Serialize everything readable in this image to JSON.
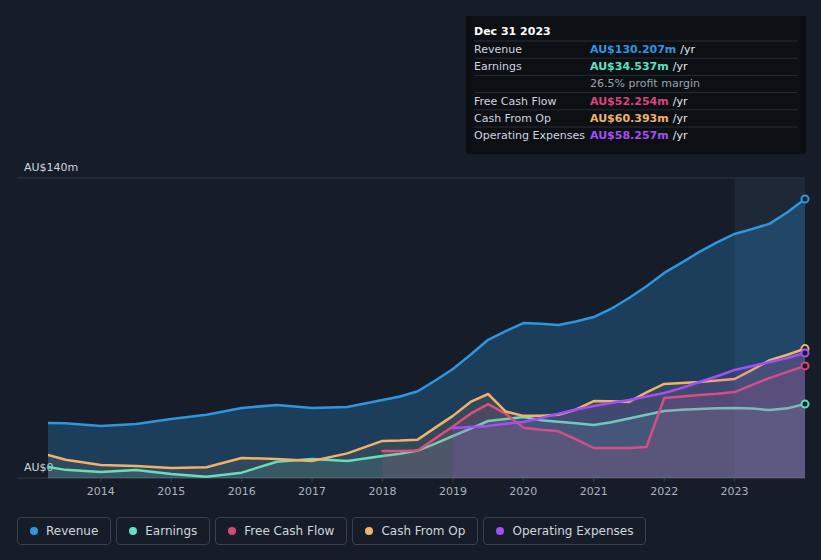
{
  "chart_data": {
    "type": "line",
    "x": [
      2013.25,
      2013.5,
      2014.0,
      2014.5,
      2015.0,
      2015.5,
      2016.0,
      2016.5,
      2017.0,
      2017.5,
      2018.0,
      2018.25,
      2018.5,
      2018.75,
      2019.0,
      2019.25,
      2019.5,
      2019.75,
      2020.0,
      2020.25,
      2020.5,
      2020.75,
      2021.0,
      2021.25,
      2021.5,
      2021.75,
      2022.0,
      2022.25,
      2022.5,
      2022.75,
      2023.0,
      2023.25,
      2023.5,
      2023.75,
      2024.0
    ],
    "series": [
      {
        "name": "Revenue",
        "color": "#2d96e0",
        "values": [
          25.7,
          25.5,
          24.3,
          25.2,
          27.5,
          29.5,
          32.7,
          34.1,
          32.7,
          33.1,
          36.4,
          38.0,
          40.5,
          45.5,
          50.9,
          57.5,
          64.5,
          68.5,
          72.3,
          72.0,
          71.4,
          73.0,
          75.1,
          79.0,
          84.0,
          89.5,
          95.7,
          100.5,
          105.5,
          110.0,
          113.9,
          116.2,
          118.7,
          124.0,
          130.2
        ]
      },
      {
        "name": "Earnings",
        "color": "#5fe0c2",
        "values": [
          5.1,
          3.8,
          2.8,
          3.7,
          1.9,
          0.6,
          2.5,
          7.6,
          8.9,
          7.9,
          10.3,
          11.3,
          12.8,
          16.0,
          19.6,
          23.0,
          26.6,
          27.5,
          28.5,
          27.0,
          26.2,
          25.5,
          24.7,
          26.0,
          27.8,
          29.5,
          31.3,
          31.8,
          32.2,
          32.5,
          32.7,
          32.4,
          31.7,
          32.5,
          34.5
        ]
      },
      {
        "name": "Free Cash Flow",
        "color": "#d9467c",
        "values": [
          null,
          null,
          null,
          null,
          null,
          null,
          null,
          null,
          null,
          null,
          12.6,
          12.6,
          12.8,
          18.5,
          24.0,
          30.0,
          34.5,
          30.0,
          23.5,
          22.5,
          21.8,
          18.0,
          14.0,
          14.0,
          14.0,
          14.5,
          37.3,
          38.0,
          38.7,
          39.3,
          40.1,
          43.5,
          46.7,
          49.5,
          52.3
        ]
      },
      {
        "name": "Cash From Op",
        "color": "#f0b26b",
        "values": [
          10.7,
          8.5,
          6.1,
          5.6,
          4.7,
          5.0,
          9.3,
          8.9,
          7.9,
          11.5,
          17.3,
          17.5,
          17.9,
          23.5,
          29.0,
          35.5,
          39.2,
          31.0,
          29.0,
          29.0,
          29.5,
          32.0,
          35.9,
          35.8,
          35.5,
          40.0,
          43.9,
          44.3,
          44.8,
          45.5,
          46.2,
          50.5,
          55.0,
          57.5,
          60.4
        ]
      },
      {
        "name": "Operating Expenses",
        "color": "#a44ff5",
        "values": [
          null,
          null,
          null,
          null,
          null,
          null,
          null,
          null,
          null,
          null,
          null,
          null,
          null,
          null,
          23.3,
          23.8,
          24.3,
          25.3,
          26.1,
          28.0,
          30.0,
          32.0,
          33.6,
          35.0,
          36.4,
          38.0,
          39.7,
          42.0,
          44.8,
          47.5,
          50.4,
          52.3,
          54.1,
          56.0,
          58.3
        ]
      }
    ],
    "xlim": [
      2013.25,
      2024.0
    ],
    "xticks": [
      2014,
      2015,
      2016,
      2017,
      2018,
      2019,
      2020,
      2021,
      2022,
      2023
    ],
    "ylim": [
      0,
      140
    ],
    "yticks": [
      {
        "value": 0,
        "label": "AU$0"
      },
      {
        "value": 140,
        "label": "AU$140m"
      }
    ],
    "grid": true,
    "legend": "bottom",
    "tooltip": {
      "date": "Dec 31 2023",
      "rows": [
        {
          "label": "Revenue",
          "value": "AU$130.207m",
          "unit": "/yr",
          "color": "#2d96e0"
        },
        {
          "label": "Earnings",
          "value": "AU$34.537m",
          "unit": "/yr",
          "color": "#5fe0c2"
        },
        {
          "note": "26.5% profit margin"
        },
        {
          "label": "Free Cash Flow",
          "value": "AU$52.254m",
          "unit": "/yr",
          "color": "#d9467c"
        },
        {
          "label": "Cash From Op",
          "value": "AU$60.393m",
          "unit": "/yr",
          "color": "#f0b26b"
        },
        {
          "label": "Operating Expenses",
          "value": "AU$58.257m",
          "unit": "/yr",
          "color": "#a44ff5"
        }
      ]
    }
  }
}
